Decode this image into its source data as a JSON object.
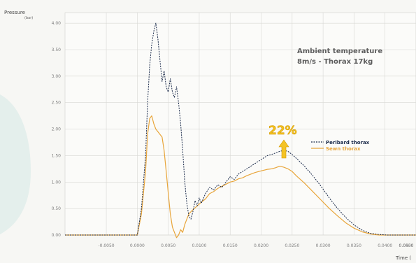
{
  "chart_data": {
    "type": "line",
    "ylabel": "Pressure",
    "yunit": "(bar)",
    "xlabel": "Time (",
    "xlim": [
      -0.02,
      0.065
    ],
    "ylim": [
      0,
      4.2
    ],
    "grid": true,
    "y_ticks": [
      {
        "value": 0.0,
        "label": "0.00"
      },
      {
        "value": 0.5,
        "label": "0.50"
      },
      {
        "value": 1.0,
        "label": "1.00"
      },
      {
        "value": 1.5,
        "label": "1.50"
      },
      {
        "value": 2.0,
        "label": "2.00"
      },
      {
        "value": 2.5,
        "label": "2.50"
      },
      {
        "value": 3.0,
        "label": "3.00"
      },
      {
        "value": 3.5,
        "label": "3.50"
      },
      {
        "value": 4.0,
        "label": "4.00"
      }
    ],
    "x_ticks": [
      {
        "value": -0.01,
        "label": "-0.0050"
      },
      {
        "value": -0.0025,
        "label": "0.0000"
      },
      {
        "value": 0.005,
        "label": "0.0050"
      },
      {
        "value": 0.0125,
        "label": "0.0100"
      },
      {
        "value": 0.02,
        "label": "0.0150"
      },
      {
        "value": 0.0275,
        "label": "0.0200"
      },
      {
        "value": 0.035,
        "label": "0.0250"
      },
      {
        "value": 0.0425,
        "label": "0.0300"
      },
      {
        "value": 0.05,
        "label": "0.0350"
      },
      {
        "value": 0.0575,
        "label": "0.0400"
      },
      {
        "value": 0.065,
        "label": "0.0450"
      },
      {
        "value": 0.0725,
        "label": "0.0500"
      }
    ],
    "annotation": {
      "line1": "Ambient temperature",
      "line2": "8m/s - Thorax 17kg"
    },
    "highlight": {
      "label": "22%",
      "x": 0.033
    },
    "legend_position": "right",
    "series": [
      {
        "name": "Peribard thorax",
        "color": "#1a2a4a",
        "style": "dashed",
        "points": [
          [
            -0.02,
            0.0
          ],
          [
            -0.0025,
            0.0
          ],
          [
            -0.0015,
            0.5
          ],
          [
            -0.0005,
            1.5
          ],
          [
            0.0,
            2.5
          ],
          [
            0.0005,
            3.2
          ],
          [
            0.001,
            3.6
          ],
          [
            0.0015,
            3.85
          ],
          [
            0.002,
            4.0
          ],
          [
            0.0025,
            3.7
          ],
          [
            0.003,
            3.3
          ],
          [
            0.0035,
            2.9
          ],
          [
            0.004,
            3.1
          ],
          [
            0.0045,
            2.8
          ],
          [
            0.005,
            2.7
          ],
          [
            0.0055,
            2.95
          ],
          [
            0.006,
            2.7
          ],
          [
            0.0065,
            2.6
          ],
          [
            0.007,
            2.8
          ],
          [
            0.0075,
            2.5
          ],
          [
            0.008,
            2.1
          ],
          [
            0.0085,
            1.6
          ],
          [
            0.009,
            1.0
          ],
          [
            0.0095,
            0.6
          ],
          [
            0.01,
            0.35
          ],
          [
            0.0105,
            0.3
          ],
          [
            0.011,
            0.45
          ],
          [
            0.0115,
            0.65
          ],
          [
            0.012,
            0.55
          ],
          [
            0.0125,
            0.7
          ],
          [
            0.013,
            0.6
          ],
          [
            0.014,
            0.78
          ],
          [
            0.015,
            0.9
          ],
          [
            0.016,
            0.85
          ],
          [
            0.017,
            0.95
          ],
          [
            0.018,
            0.9
          ],
          [
            0.019,
            1.0
          ],
          [
            0.02,
            1.1
          ],
          [
            0.021,
            1.05
          ],
          [
            0.022,
            1.15
          ],
          [
            0.023,
            1.2
          ],
          [
            0.024,
            1.25
          ],
          [
            0.025,
            1.3
          ],
          [
            0.026,
            1.35
          ],
          [
            0.027,
            1.4
          ],
          [
            0.028,
            1.45
          ],
          [
            0.029,
            1.5
          ],
          [
            0.03,
            1.52
          ],
          [
            0.031,
            1.55
          ],
          [
            0.032,
            1.58
          ],
          [
            0.033,
            1.6
          ],
          [
            0.034,
            1.58
          ],
          [
            0.035,
            1.52
          ],
          [
            0.036,
            1.45
          ],
          [
            0.038,
            1.3
          ],
          [
            0.04,
            1.12
          ],
          [
            0.042,
            0.92
          ],
          [
            0.044,
            0.7
          ],
          [
            0.046,
            0.5
          ],
          [
            0.048,
            0.33
          ],
          [
            0.05,
            0.19
          ],
          [
            0.052,
            0.09
          ],
          [
            0.054,
            0.03
          ],
          [
            0.056,
            0.01
          ],
          [
            0.058,
            0.0
          ],
          [
            0.065,
            0.0
          ]
        ]
      },
      {
        "name": "Sewn thorax",
        "color": "#e8a53a",
        "style": "solid",
        "points": [
          [
            -0.02,
            0.0
          ],
          [
            -0.0025,
            0.0
          ],
          [
            -0.0015,
            0.4
          ],
          [
            -0.0005,
            1.2
          ],
          [
            0.0,
            1.9
          ],
          [
            0.0005,
            2.2
          ],
          [
            0.001,
            2.25
          ],
          [
            0.0015,
            2.1
          ],
          [
            0.002,
            2.0
          ],
          [
            0.0025,
            1.95
          ],
          [
            0.003,
            1.9
          ],
          [
            0.0035,
            1.85
          ],
          [
            0.004,
            1.6
          ],
          [
            0.0045,
            1.2
          ],
          [
            0.005,
            0.8
          ],
          [
            0.0055,
            0.4
          ],
          [
            0.006,
            0.15
          ],
          [
            0.0065,
            0.05
          ],
          [
            0.007,
            -0.05
          ],
          [
            0.0075,
            0.0
          ],
          [
            0.008,
            0.1
          ],
          [
            0.0085,
            0.05
          ],
          [
            0.009,
            0.2
          ],
          [
            0.0095,
            0.3
          ],
          [
            0.01,
            0.4
          ],
          [
            0.011,
            0.48
          ],
          [
            0.012,
            0.55
          ],
          [
            0.013,
            0.62
          ],
          [
            0.014,
            0.68
          ],
          [
            0.015,
            0.78
          ],
          [
            0.016,
            0.82
          ],
          [
            0.017,
            0.88
          ],
          [
            0.018,
            0.92
          ],
          [
            0.019,
            0.96
          ],
          [
            0.02,
            1.0
          ],
          [
            0.021,
            1.02
          ],
          [
            0.022,
            1.06
          ],
          [
            0.023,
            1.08
          ],
          [
            0.024,
            1.12
          ],
          [
            0.025,
            1.15
          ],
          [
            0.026,
            1.18
          ],
          [
            0.027,
            1.2
          ],
          [
            0.028,
            1.22
          ],
          [
            0.029,
            1.24
          ],
          [
            0.03,
            1.25
          ],
          [
            0.031,
            1.27
          ],
          [
            0.032,
            1.3
          ],
          [
            0.033,
            1.28
          ],
          [
            0.034,
            1.25
          ],
          [
            0.035,
            1.2
          ],
          [
            0.036,
            1.12
          ],
          [
            0.038,
            0.98
          ],
          [
            0.04,
            0.82
          ],
          [
            0.042,
            0.66
          ],
          [
            0.044,
            0.5
          ],
          [
            0.046,
            0.36
          ],
          [
            0.048,
            0.23
          ],
          [
            0.05,
            0.13
          ],
          [
            0.052,
            0.06
          ],
          [
            0.054,
            0.02
          ],
          [
            0.056,
            0.0
          ],
          [
            0.065,
            0.0
          ]
        ]
      }
    ]
  }
}
